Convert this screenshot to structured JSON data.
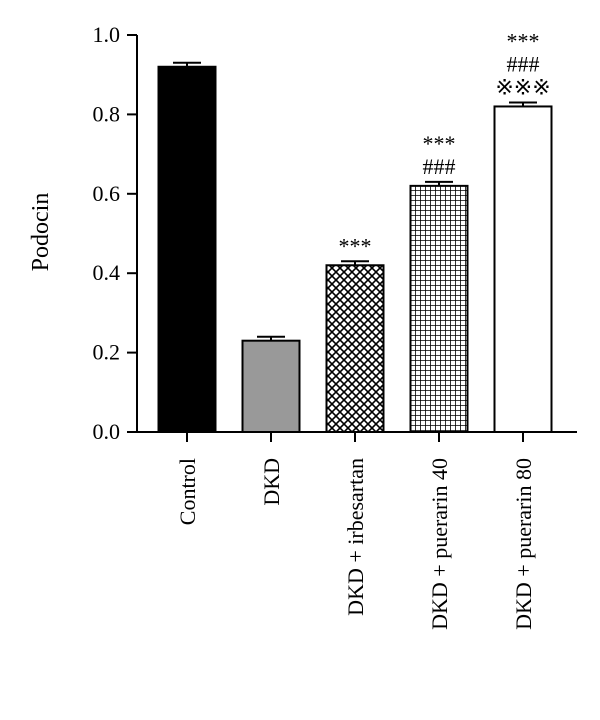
{
  "chart_data": {
    "type": "bar",
    "title": "",
    "xlabel": "",
    "ylabel": "Podocin",
    "ylim": [
      0,
      1.0
    ],
    "yticks": [
      "0.0",
      "0.2",
      "0.4",
      "0.6",
      "0.8",
      "1.0"
    ],
    "grid": false,
    "categories": [
      "Control",
      "DKD",
      "DKD + irbesartan",
      "DKD + puerarin 40",
      "DKD + puerarin 80"
    ],
    "values": [
      0.92,
      0.23,
      0.42,
      0.62,
      0.82
    ],
    "errors": [
      0.01,
      0.01,
      0.01,
      0.01,
      0.01
    ],
    "fills": [
      "solid-black",
      "solid-gray",
      "crosshatch",
      "grid",
      "white"
    ],
    "colors": {
      "black": "#000000",
      "gray": "#999999",
      "white": "#ffffff"
    },
    "annotations": [
      [],
      [],
      [
        "***"
      ],
      [
        "***",
        "###"
      ],
      [
        "***",
        "###",
        "※※※"
      ]
    ]
  }
}
